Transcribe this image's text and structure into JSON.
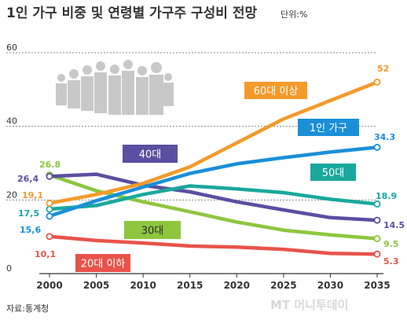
{
  "watermark": "MT 머니투데이",
  "chart_data": {
    "type": "line",
    "title": "1인 가구 비중 및 연령별 가구주 구성비 전망",
    "unit": "단위:%",
    "source": "자료:통계청",
    "x": [
      2000,
      2005,
      2010,
      2015,
      2020,
      2025,
      2030,
      2035
    ],
    "xticks": [
      "2000",
      "2005",
      "2010",
      "2015",
      "2020",
      "2025",
      "2030",
      "2035"
    ],
    "ylim": [
      0,
      60
    ],
    "yticks": [
      "0",
      "20",
      "40",
      "60"
    ],
    "grid": true,
    "series": [
      {
        "name": "60대 이상",
        "color": "#f39a2b",
        "values": [
          19.1,
          21.5,
          24.5,
          29.0,
          35.5,
          42.0,
          47.0,
          52.0
        ],
        "start_label": "19,1",
        "end_label": "52"
      },
      {
        "name": "1인 가구",
        "color": "#1a8fd8",
        "values": [
          15.6,
          19.8,
          23.5,
          27.2,
          29.8,
          31.5,
          33.0,
          34.3
        ],
        "start_label": "15,6",
        "end_label": "34.3"
      },
      {
        "name": "50대",
        "color": "#1aa89c",
        "values": [
          17.5,
          18.5,
          21.5,
          23.8,
          23.0,
          22.0,
          20.2,
          18.9
        ],
        "start_label": "17,5",
        "end_label": "18.9"
      },
      {
        "name": "40대",
        "color": "#5a4fa0",
        "values": [
          26.4,
          27.0,
          24.0,
          22.2,
          19.5,
          17.3,
          15.2,
          14.5
        ],
        "start_label": "26,4",
        "end_label": "14.5"
      },
      {
        "name": "30대",
        "color": "#8dc63f",
        "values": [
          26.8,
          22.5,
          19.5,
          16.8,
          14.0,
          11.8,
          10.5,
          9.5
        ],
        "start_label": "26.8",
        "end_label": "9.5"
      },
      {
        "name": "20대 이하",
        "color": "#e8534a",
        "values": [
          10.1,
          9.0,
          8.3,
          7.5,
          7.2,
          6.6,
          5.5,
          5.3
        ],
        "start_label": "10,1",
        "end_label": "5.3"
      }
    ]
  }
}
